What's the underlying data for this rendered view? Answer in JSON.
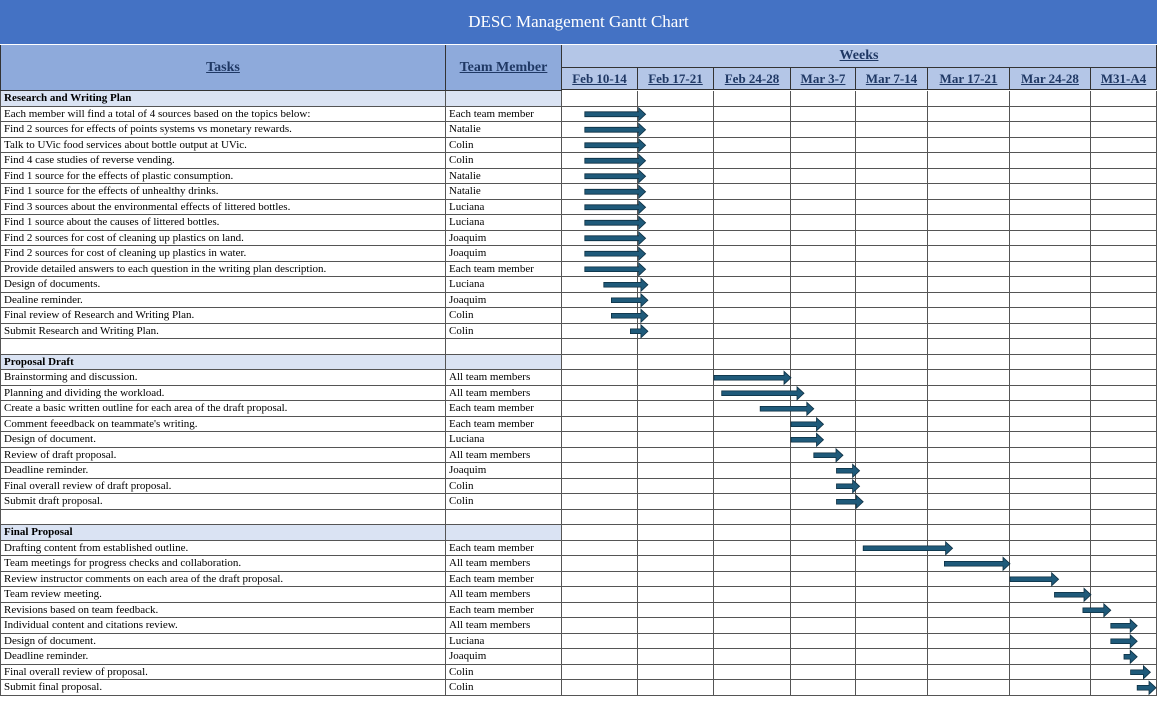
{
  "title": "DESC Management Gantt Chart",
  "headers": {
    "tasks": "Tasks",
    "member": "Team Member",
    "weeks": "Weeks"
  },
  "colors": {
    "title_bg": "#4472c4",
    "header_bg": "#8eaadb",
    "week_bg": "#b4c6e7",
    "section_bg": "#dae3f3",
    "bar": "#1f5a7a"
  },
  "chart_data": {
    "type": "gantt",
    "title": "DESC Management Gantt Chart",
    "x_axis_label": "Weeks",
    "weeks": [
      "Feb 10-14",
      "Feb 17-21",
      "Feb 24-28",
      "Mar 3-7",
      "Mar 7-14",
      "Mar 17-21",
      "Mar 24-28",
      "M31-A4"
    ],
    "rows": [
      {
        "kind": "section",
        "label": "Research and Writing Plan"
      },
      {
        "kind": "task",
        "task": "Each member will find a total of 4 sources based on the topics below:",
        "member": "Each team member",
        "start": 0.3,
        "end": 1.1
      },
      {
        "kind": "task",
        "task": "Find 2 sources for effects of points systems vs monetary rewards.",
        "member": "Natalie",
        "start": 0.3,
        "end": 1.1
      },
      {
        "kind": "task",
        "task": "Talk to UVic food services about bottle output at UVic.",
        "member": "Colin",
        "start": 0.3,
        "end": 1.1
      },
      {
        "kind": "task",
        "task": "Find 4 case studies of reverse vending.",
        "member": "Colin",
        "start": 0.3,
        "end": 1.1
      },
      {
        "kind": "task",
        "task": "Find 1 source for the effects of plastic consumption.",
        "member": "Natalie",
        "start": 0.3,
        "end": 1.1
      },
      {
        "kind": "task",
        "task": "Find 1 source for the effects of unhealthy drinks.",
        "member": "Natalie",
        "start": 0.3,
        "end": 1.1
      },
      {
        "kind": "task",
        "task": "Find 3 sources about the environmental effects of littered bottles.",
        "member": "Luciana",
        "start": 0.3,
        "end": 1.1
      },
      {
        "kind": "task",
        "task": "Find 1 source about the causes of littered bottles.",
        "member": "Luciana",
        "start": 0.3,
        "end": 1.1
      },
      {
        "kind": "task",
        "task": "Find 2 sources for cost of cleaning up plastics on land.",
        "member": "Joaquim",
        "start": 0.3,
        "end": 1.1
      },
      {
        "kind": "task",
        "task": "Find 2 sources for cost of cleaning up plastics in water.",
        "member": "Joaquim",
        "start": 0.3,
        "end": 1.1
      },
      {
        "kind": "task",
        "task": "Provide detailed answers to each question in the writing plan description.",
        "member": "Each team member",
        "start": 0.3,
        "end": 1.1
      },
      {
        "kind": "task",
        "task": "Design of documents.",
        "member": "Luciana",
        "start": 0.55,
        "end": 1.13
      },
      {
        "kind": "task",
        "task": "Dealine reminder.",
        "member": "Joaquim",
        "start": 0.65,
        "end": 1.13
      },
      {
        "kind": "task",
        "task": "Final review of Research and Writing Plan.",
        "member": "Colin",
        "start": 0.65,
        "end": 1.13
      },
      {
        "kind": "task",
        "task": "Submit Research and Writing Plan.",
        "member": "Colin",
        "start": 0.9,
        "end": 1.13
      },
      {
        "kind": "blank"
      },
      {
        "kind": "section",
        "label": "Proposal Draft"
      },
      {
        "kind": "task",
        "task": "Brainstorming and discussion.",
        "member": "All team members",
        "start": 2.0,
        "end": 3.0
      },
      {
        "kind": "task",
        "task": "Planning and dividing the workload.",
        "member": "All team members",
        "start": 2.1,
        "end": 3.2
      },
      {
        "kind": "task",
        "task": "Create a basic written outline for each area of the draft proposal.",
        "member": "Each team member",
        "start": 2.6,
        "end": 3.35
      },
      {
        "kind": "task",
        "task": "Comment feeedback on teammate's writing.",
        "member": "Each team member",
        "start": 3.0,
        "end": 3.5
      },
      {
        "kind": "task",
        "task": "Design of document.",
        "member": "Luciana",
        "start": 3.0,
        "end": 3.5
      },
      {
        "kind": "task",
        "task": "Review of draft proposal.",
        "member": "All team members",
        "start": 3.35,
        "end": 3.8
      },
      {
        "kind": "task",
        "task": "Deadline reminder.",
        "member": "Joaquim",
        "start": 3.7,
        "end": 4.05
      },
      {
        "kind": "task",
        "task": "Final overall review of draft proposal.",
        "member": "Colin",
        "start": 3.7,
        "end": 4.05
      },
      {
        "kind": "task",
        "task": "Submit draft proposal.",
        "member": "Colin",
        "start": 3.7,
        "end": 4.1
      },
      {
        "kind": "blank"
      },
      {
        "kind": "section",
        "label": "Final Proposal"
      },
      {
        "kind": "task",
        "task": "Drafting content from established outline.",
        "member": "Each team member",
        "start": 4.1,
        "end": 5.3
      },
      {
        "kind": "task",
        "task": "Team meetings for progress checks and collaboration.",
        "member": "All team members",
        "start": 5.2,
        "end": 6.0
      },
      {
        "kind": "task",
        "task": "Review instructor comments on each area of the draft proposal.",
        "member": "Each team member",
        "start": 6.0,
        "end": 6.6
      },
      {
        "kind": "task",
        "task": "Team review meeting.",
        "member": "All team members",
        "start": 6.55,
        "end": 7.0
      },
      {
        "kind": "task",
        "task": "Revisions based on team feedback.",
        "member": "Each team member",
        "start": 6.9,
        "end": 7.3
      },
      {
        "kind": "task",
        "task": "Individual content and citations review.",
        "member": "All team members",
        "start": 7.3,
        "end": 7.7
      },
      {
        "kind": "task",
        "task": "Design of document.",
        "member": "Luciana",
        "start": 7.3,
        "end": 7.7
      },
      {
        "kind": "task",
        "task": "Deadline reminder.",
        "member": "Joaquim",
        "start": 7.5,
        "end": 7.7
      },
      {
        "kind": "task",
        "task": "Final overall review of proposal.",
        "member": "Colin",
        "start": 7.6,
        "end": 7.9
      },
      {
        "kind": "task",
        "task": "Submit final proposal.",
        "member": "Colin",
        "start": 7.7,
        "end": 8.0
      }
    ]
  }
}
